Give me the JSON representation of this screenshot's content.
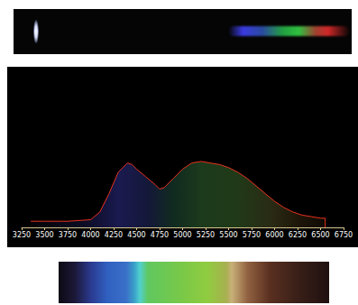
{
  "chart_data": {
    "type": "line",
    "x": [
      3350,
      3500,
      3750,
      4000,
      4100,
      4200,
      4300,
      4400,
      4450,
      4500,
      4600,
      4700,
      4750,
      4800,
      4900,
      5000,
      5100,
      5200,
      5300,
      5400,
      5500,
      5600,
      5700,
      5800,
      5900,
      6000,
      6100,
      6200,
      6300,
      6400,
      6500,
      6550,
      6550
    ],
    "values": [
      4,
      4,
      4,
      5,
      10,
      22,
      36,
      42,
      41,
      38,
      33,
      28,
      25,
      26,
      32,
      38,
      42,
      43,
      42,
      41,
      39,
      36,
      32,
      27,
      22,
      17,
      13,
      10,
      8,
      7,
      6,
      6,
      0
    ],
    "color": "#e8321e",
    "xlim": [
      3250,
      6750
    ],
    "xticks": [
      3250,
      3500,
      3750,
      4000,
      4250,
      4500,
      4750,
      5000,
      5250,
      5500,
      5750,
      6000,
      6250,
      6500,
      6750
    ],
    "ylim": [
      0,
      100
    ],
    "tick_labels": "x",
    "grid": false
  }
}
